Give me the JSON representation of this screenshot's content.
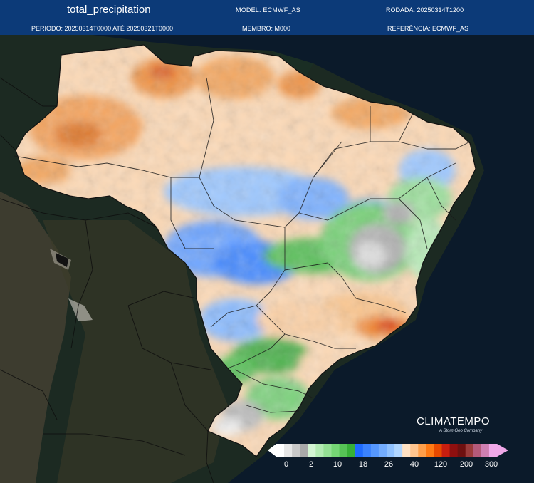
{
  "header": {
    "title": "total_precipitation",
    "model": "MODEL: ECMWF_AS",
    "rodada": "RODADA: 20250314T1200",
    "periodo": "PERIODO: 20250314T0000 ATÉ 20250321T0000",
    "membro": "MEMBRO: M000",
    "referencia": "REFERÊNCIA: ECMWF_AS"
  },
  "brand": {
    "name": "CLIMATEMPO",
    "tagline": "A StormGeo Company"
  },
  "legend": {
    "ticks": [
      "0",
      "2",
      "10",
      "18",
      "26",
      "40",
      "120",
      "200",
      "300"
    ],
    "colors": [
      "#ffffff",
      "#e6e6e6",
      "#c8c8c8",
      "#a9a9a9",
      "#d3f5d3",
      "#b3ebb3",
      "#94e094",
      "#75d675",
      "#56c456",
      "#37b037",
      "#1f6bff",
      "#3a82ff",
      "#5698ff",
      "#73adff",
      "#90c2ff",
      "#b0d6ff",
      "#ffe2c4",
      "#ffc58f",
      "#ff9f4a",
      "#ff7a14",
      "#e84a00",
      "#c81e0f",
      "#8f0f0f",
      "#6e1010",
      "#9b3b3b",
      "#b45a7a",
      "#cf7fb2",
      "#f0a8e8"
    ]
  },
  "colors": {
    "header_bg": "#0c3a78",
    "ocean": "#0b1a2a"
  }
}
